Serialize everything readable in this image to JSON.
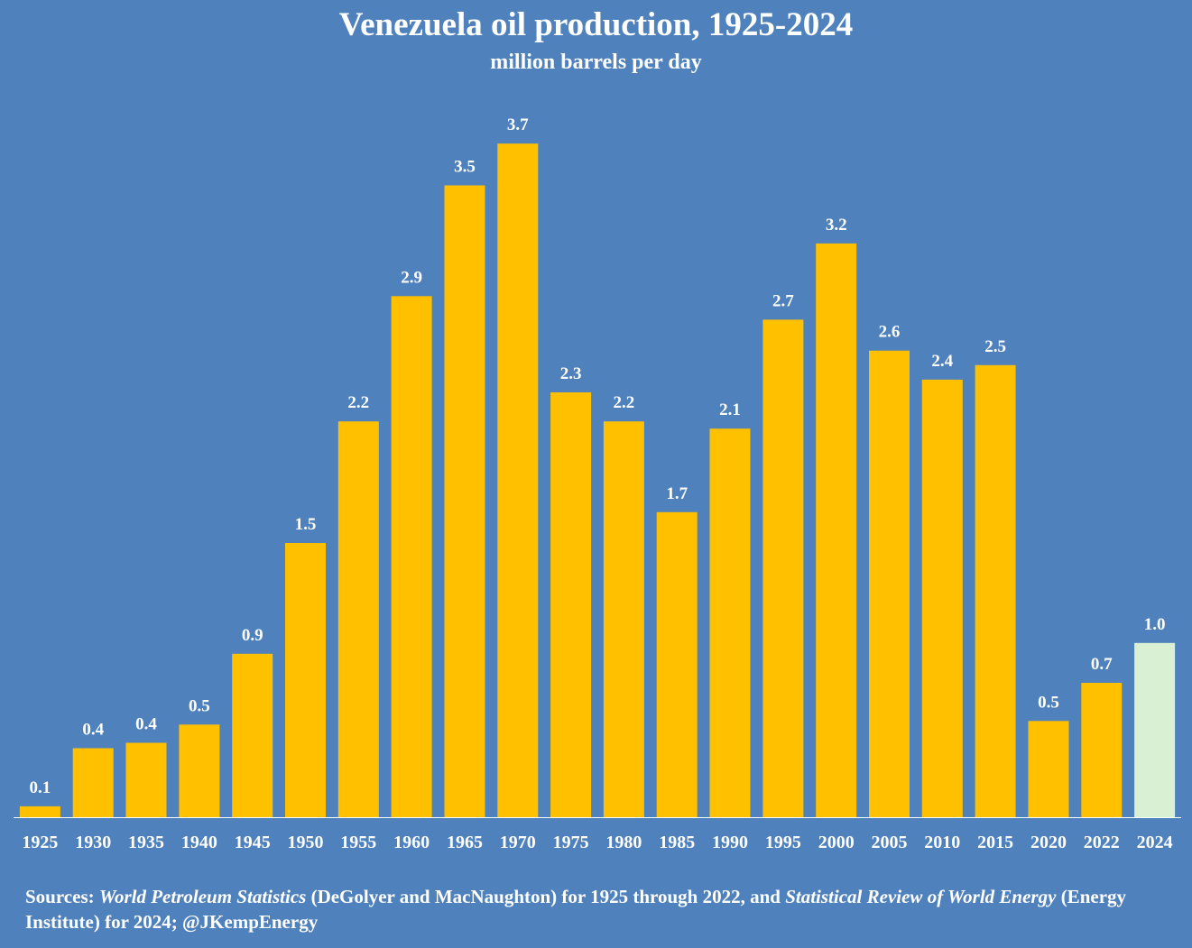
{
  "chart_data": {
    "type": "bar",
    "title": "Venezuela oil production, 1925-2024",
    "subtitle": "million barrels per day",
    "categories": [
      "1925",
      "1930",
      "1935",
      "1940",
      "1945",
      "1950",
      "1955",
      "1960",
      "1965",
      "1970",
      "1975",
      "1980",
      "1985",
      "1990",
      "1995",
      "2000",
      "2005",
      "2010",
      "2015",
      "2020",
      "2022",
      "2024"
    ],
    "values": [
      0.1,
      0.4,
      0.4,
      0.5,
      0.9,
      1.5,
      2.2,
      2.9,
      3.5,
      3.7,
      2.3,
      2.2,
      1.7,
      2.1,
      2.7,
      3.2,
      2.6,
      2.4,
      2.5,
      0.5,
      0.7,
      1.0
    ],
    "exact_values": [
      0.06,
      0.38,
      0.41,
      0.51,
      0.9,
      1.51,
      2.18,
      2.87,
      3.48,
      3.71,
      2.34,
      2.18,
      1.68,
      2.14,
      2.74,
      3.16,
      2.57,
      2.41,
      2.49,
      0.53,
      0.74,
      0.96
    ],
    "value_labels": [
      "0.1",
      "0.4",
      "0.4",
      "0.5",
      "0.9",
      "1.5",
      "2.2",
      "2.9",
      "3.5",
      "3.7",
      "2.3",
      "2.2",
      "1.7",
      "2.1",
      "2.7",
      "3.2",
      "2.6",
      "2.4",
      "2.5",
      "0.5",
      "0.7",
      "1.0"
    ],
    "bar_color": "#ffc000",
    "highlight_color": "#d9f0d3",
    "highlight_category": "2024",
    "xlabel": "",
    "ylabel": "",
    "ylim": [
      0,
      3.8
    ],
    "grid": false,
    "legend": "none"
  },
  "sources": {
    "prefix": "Sources: ",
    "source1": "World Petroleum Statistics",
    "middle": " (DeGolyer and MacNaughton) for 1925 through 2022, and ",
    "source2": "Statistical Review of World Energy",
    "suffix": " (Energy Institute) for 2024; @JKempEnergy"
  },
  "colors": {
    "background": "#4f81bd",
    "text": "#ffffff",
    "axis_line": "#ffffff"
  }
}
